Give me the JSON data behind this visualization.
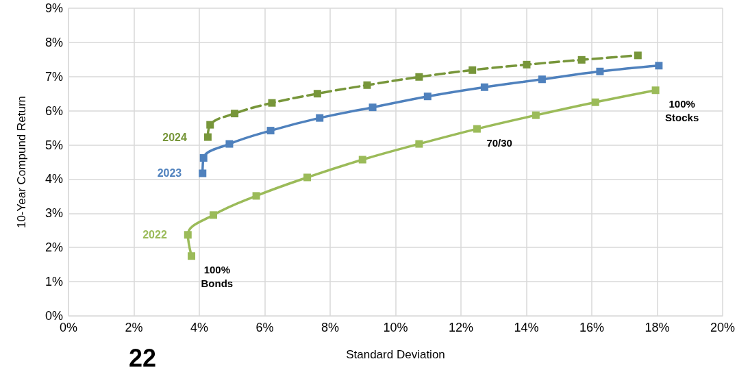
{
  "chart_data": {
    "type": "line",
    "xlabel": "Standard Deviation",
    "ylabel": "10-Year Compund Return",
    "xlim": [
      0,
      20
    ],
    "ylim": [
      0,
      9
    ],
    "xticks": [
      {
        "value": 0,
        "label": "0%"
      },
      {
        "value": 2,
        "label": "2%"
      },
      {
        "value": 4,
        "label": "4%"
      },
      {
        "value": 6,
        "label": "6%"
      },
      {
        "value": 8,
        "label": "8%"
      },
      {
        "value": 10,
        "label": "10%"
      },
      {
        "value": 12,
        "label": "12%"
      },
      {
        "value": 14,
        "label": "14%"
      },
      {
        "value": 16,
        "label": "16%"
      },
      {
        "value": 18,
        "label": "18%"
      },
      {
        "value": 20,
        "label": "20%"
      }
    ],
    "yticks": [
      {
        "value": 0,
        "label": "0%"
      },
      {
        "value": 1,
        "label": "1%"
      },
      {
        "value": 2,
        "label": "2%"
      },
      {
        "value": 3,
        "label": "3%"
      },
      {
        "value": 4,
        "label": "4%"
      },
      {
        "value": 5,
        "label": "5%"
      },
      {
        "value": 6,
        "label": "6%"
      },
      {
        "value": 7,
        "label": "7%"
      },
      {
        "value": 8,
        "label": "8%"
      },
      {
        "value": 9,
        "label": "9%"
      }
    ],
    "grid": true,
    "legend": false,
    "marker": "square",
    "series": [
      {
        "name": "2024",
        "color": "#77963a",
        "line_style": "dashed",
        "x": [
          4.26,
          4.33,
          5.08,
          6.22,
          7.61,
          9.13,
          10.72,
          12.35,
          14.01,
          15.69,
          17.41
        ],
        "values": [
          5.23,
          5.59,
          5.92,
          6.23,
          6.5,
          6.75,
          6.99,
          7.19,
          7.35,
          7.49,
          7.62
        ]
      },
      {
        "name": "2023",
        "color": "#4f81bd",
        "line_style": "solid",
        "x": [
          4.1,
          4.13,
          4.92,
          6.18,
          7.68,
          9.3,
          10.98,
          12.72,
          14.48,
          16.25,
          18.05
        ],
        "values": [
          4.17,
          4.62,
          5.03,
          5.42,
          5.79,
          6.1,
          6.42,
          6.69,
          6.92,
          7.15,
          7.32
        ]
      },
      {
        "name": "2022",
        "color": "#9bbb59",
        "line_style": "solid",
        "x": [
          3.76,
          3.65,
          4.43,
          5.74,
          7.3,
          8.99,
          10.72,
          12.49,
          14.29,
          16.11,
          17.95
        ],
        "values": [
          1.75,
          2.37,
          2.95,
          3.51,
          4.05,
          4.57,
          5.03,
          5.47,
          5.87,
          6.25,
          6.6
        ]
      }
    ],
    "annotations": [
      {
        "text": "100%\nBonds",
        "x": 3.76,
        "y": 1.75
      },
      {
        "text": "70/30",
        "x": 12.49,
        "y": 5.47
      },
      {
        "text": "100%\nStocks",
        "x": 17.95,
        "y": 6.6
      },
      "22"
    ]
  }
}
